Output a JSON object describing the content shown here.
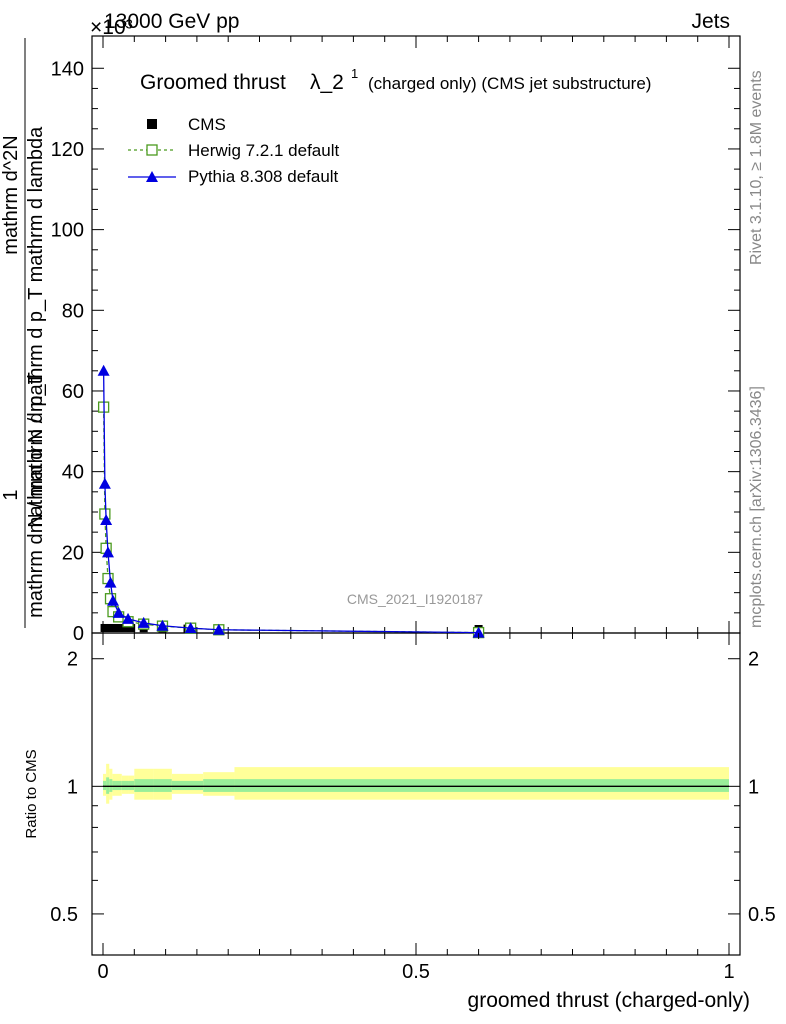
{
  "header": {
    "energy_label": "13000 GeV pp",
    "process_label": "Jets",
    "exponent_label": "×10³"
  },
  "side_labels": {
    "rivet": "Rivet 3.1.10, ≥ 1.8M events",
    "mcplots": "mcplots.cern.ch [arXiv:1306.3436]"
  },
  "chart_data": [
    {
      "type": "line",
      "title_main": "Groomed thrust",
      "title_lambda": "λ_2",
      "title_sup": "1",
      "title_suffix": "(charged only) (CMS jet substructure)",
      "ylabel_num": "1",
      "ylabel_line1": "mathrm d N / mathrm d p_T mathrm d lambda",
      "ylabel_line2": "mathrm d N / mathrm d p_T",
      "ylabel_line3": "mathrm d^2N",
      "watermark": "CMS_2021_I1920187",
      "yscale_note": "×10³",
      "xlim": [
        0,
        1
      ],
      "ylim": [
        0,
        148
      ],
      "yticks": [
        0,
        20,
        40,
        60,
        80,
        100,
        120,
        140
      ],
      "legend_position": "top-left",
      "series": [
        {
          "name": "CMS",
          "marker": "square-filled",
          "color": "#000000",
          "x": [
            0.0025,
            0.0075,
            0.0125,
            0.0175,
            0.025,
            0.035,
            0.045,
            0.065,
            0.095,
            0.135,
            0.185,
            0.6
          ],
          "y": [
            0.25,
            0.25,
            0.25,
            0.25,
            0.25,
            0.25,
            0.25,
            0.2,
            0.15,
            0.1,
            0.05,
            0.0
          ]
        },
        {
          "name": "Herwig 7.2.1 default",
          "marker": "square-open",
          "color": "#4a9a1e",
          "dashed": true,
          "x": [
            0.001,
            0.003,
            0.005,
            0.008,
            0.012,
            0.016,
            0.025,
            0.04,
            0.065,
            0.095,
            0.14,
            0.185,
            0.6
          ],
          "y": [
            56,
            29.5,
            21,
            13.5,
            8.5,
            5.3,
            4.0,
            2.8,
            2.2,
            1.7,
            1.2,
            0.8,
            0.1
          ]
        },
        {
          "name": "Pythia 8.308 default",
          "marker": "triangle-filled",
          "color": "#0000e0",
          "dashed": false,
          "x": [
            0.001,
            0.003,
            0.005,
            0.008,
            0.012,
            0.016,
            0.025,
            0.04,
            0.065,
            0.095,
            0.14,
            0.185,
            0.6
          ],
          "y": [
            65,
            37,
            28,
            20,
            12.5,
            8,
            5,
            3.5,
            2.5,
            1.8,
            1.2,
            0.8,
            0.1
          ]
        }
      ]
    },
    {
      "type": "area",
      "ylabel": "Ratio to CMS",
      "xlabel": "groomed thrust (charged-only)",
      "xlim": [
        0,
        1
      ],
      "ylim": [
        0.4,
        2.3
      ],
      "yscale": "log",
      "yticks": [
        0.5,
        1,
        2
      ],
      "ytick_labels": [
        "0.5",
        "1",
        "2"
      ],
      "xticks": [
        0,
        0.5,
        1
      ],
      "xtick_labels": [
        "0",
        "0.5",
        "1"
      ],
      "reference": 1,
      "bins": [
        0,
        0.005,
        0.01,
        0.015,
        0.02,
        0.03,
        0.04,
        0.05,
        0.08,
        0.11,
        0.16,
        0.21,
        1.0
      ],
      "stat_band": [
        [
          0.98,
          1.03
        ],
        [
          0.96,
          1.05
        ],
        [
          0.97,
          1.04
        ],
        [
          0.98,
          1.03
        ],
        [
          0.98,
          1.03
        ],
        [
          0.98,
          1.03
        ],
        [
          0.98,
          1.03
        ],
        [
          0.97,
          1.04
        ],
        [
          0.97,
          1.04
        ],
        [
          0.98,
          1.03
        ],
        [
          0.97,
          1.04
        ],
        [
          0.97,
          1.04
        ]
      ],
      "syst_band": [
        [
          0.95,
          1.07
        ],
        [
          0.91,
          1.13
        ],
        [
          0.93,
          1.1
        ],
        [
          0.95,
          1.07
        ],
        [
          0.95,
          1.07
        ],
        [
          0.96,
          1.06
        ],
        [
          0.96,
          1.06
        ],
        [
          0.93,
          1.1
        ],
        [
          0.93,
          1.1
        ],
        [
          0.96,
          1.07
        ],
        [
          0.95,
          1.08
        ],
        [
          0.93,
          1.11
        ]
      ]
    }
  ]
}
